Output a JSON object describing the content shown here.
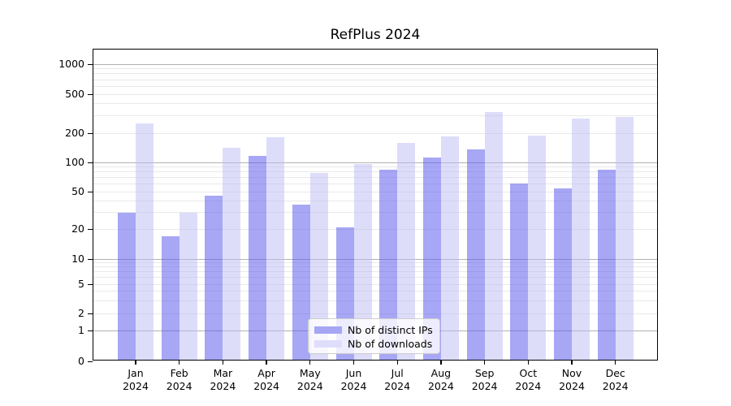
{
  "title": "RefPlus 2024",
  "chart_data": {
    "type": "bar",
    "title": "RefPlus 2024",
    "categories": [
      "Jan 2024",
      "Feb 2024",
      "Mar 2024",
      "Apr 2024",
      "May 2024",
      "Jun 2024",
      "Jul 2024",
      "Aug 2024",
      "Sep 2024",
      "Oct 2024",
      "Nov 2024",
      "Dec 2024"
    ],
    "series": [
      {
        "name": "Nb of distinct IPs",
        "values": [
          30,
          17,
          45,
          117,
          36,
          21,
          84,
          112,
          136,
          61,
          54,
          84
        ]
      },
      {
        "name": "Nb of downloads",
        "values": [
          253,
          30,
          141,
          181,
          78,
          96,
          159,
          186,
          330,
          190,
          282,
          294
        ]
      }
    ],
    "xlabel": "",
    "ylabel": "",
    "yscale": "symlog",
    "yticks": [
      0,
      1,
      2,
      5,
      10,
      20,
      50,
      100,
      200,
      500,
      1000
    ],
    "ylim": [
      0,
      1400
    ],
    "grid": true,
    "legend_position": "lower center"
  },
  "legend": {
    "items": [
      {
        "label": "Nb of distinct IPs",
        "swatch_color": "#a6a6f4"
      },
      {
        "label": "Nb of downloads",
        "swatch_color": "#dedefa"
      }
    ]
  },
  "colors": {
    "bar_ips": "rgba(88,88,236,0.53)",
    "bar_downloads": "rgba(187,187,246,0.5)",
    "major_grid": "#b2b2b2",
    "minor_grid": "#e9e9e9",
    "spine": "#000000"
  }
}
